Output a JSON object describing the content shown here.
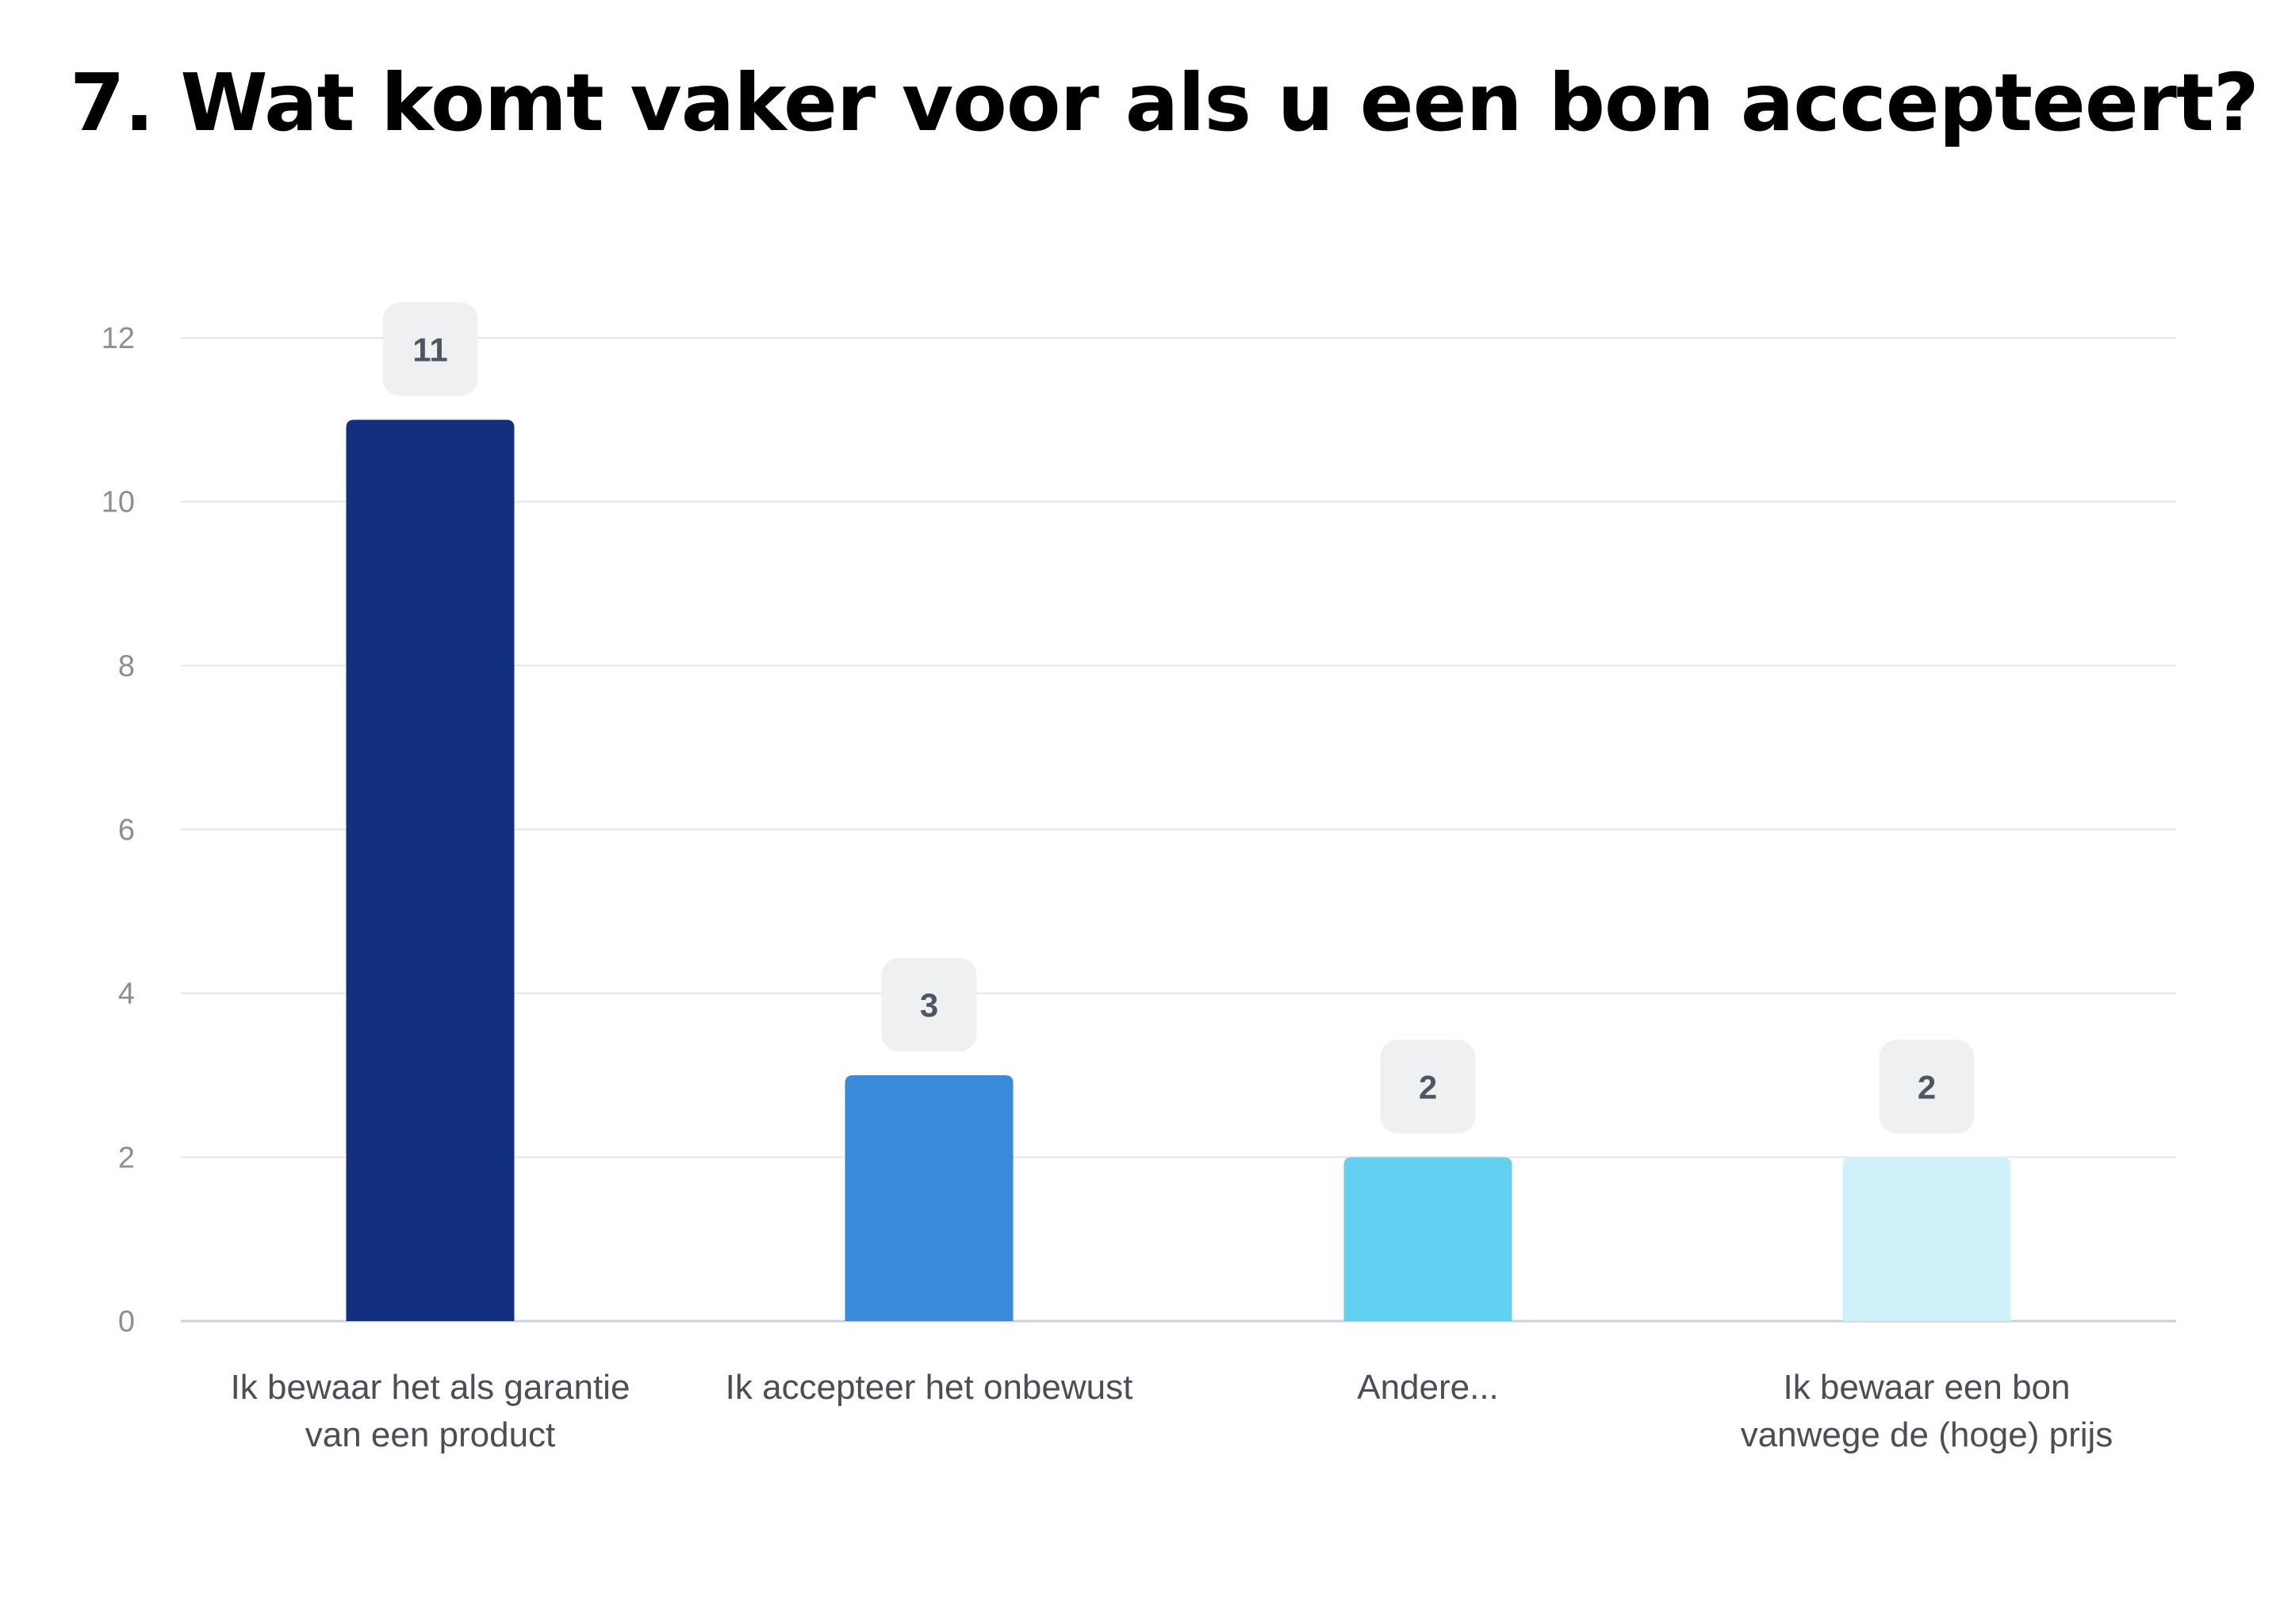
{
  "title": "7. Wat komt vaker voor als u een bon accepteert?",
  "chart_data": {
    "type": "bar",
    "title": "7. Wat komt vaker voor als u een bon accepteert?",
    "xlabel": "",
    "ylabel": "",
    "categories": [
      [
        "Ik bewaar het als garantie",
        "van een product"
      ],
      [
        "Ik accepteer het onbewust"
      ],
      [
        "Andere..."
      ],
      [
        "Ik bewaar een bon",
        "vanwege de (hoge) prijs"
      ]
    ],
    "values": [
      11,
      3,
      2,
      2
    ],
    "colors": [
      "#122f80",
      "#398bd9",
      "#62d0f0",
      "#d0f1f9"
    ],
    "ylim": [
      0,
      12
    ],
    "yticks": [
      0,
      2,
      4,
      6,
      8,
      10,
      12
    ],
    "grid": true,
    "legend": "none",
    "data_labels": true
  }
}
